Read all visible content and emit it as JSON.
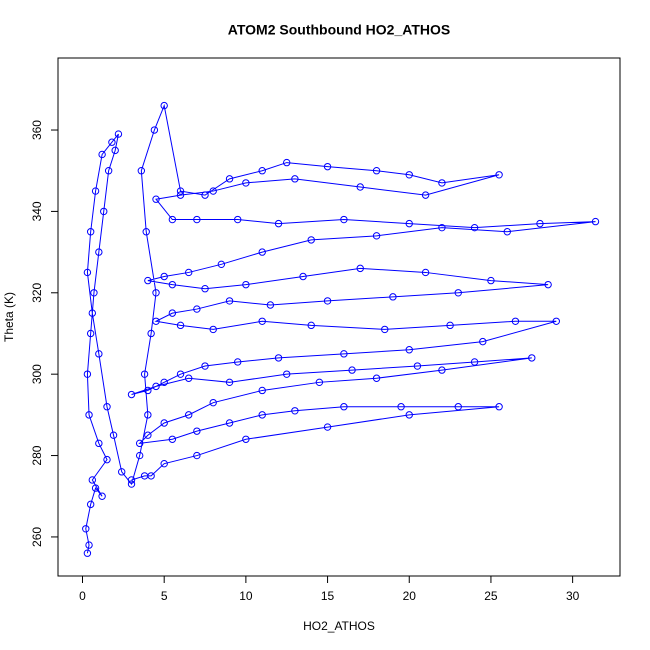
{
  "chart_data": {
    "type": "line",
    "markers": true,
    "title": "ATOM2 Southbound HO2_ATHOS",
    "xlabel": "HO2_ATHOS",
    "ylabel": "Theta (K)",
    "color": "#0000ff",
    "x": [
      0.3,
      0.4,
      0.2,
      0.5,
      0.8,
      1.2,
      0.6,
      1.5,
      1.0,
      0.4,
      0.3,
      0.5,
      0.7,
      1.0,
      1.3,
      1.6,
      2.0,
      2.2,
      1.8,
      1.2,
      0.8,
      0.5,
      0.3,
      0.6,
      1.0,
      1.5,
      1.9,
      2.4,
      3.0,
      3.5,
      4.0,
      3.8,
      4.2,
      4.5,
      3.9,
      3.6,
      4.4,
      5.0,
      6.0,
      7.5,
      9.0,
      11.0,
      12.5,
      15.0,
      18.0,
      20.0,
      22.0,
      25.5,
      21.0,
      17.0,
      13.0,
      10.0,
      8.0,
      6.0,
      4.5,
      5.5,
      7.0,
      9.5,
      12.0,
      16.0,
      20.0,
      24.0,
      28.0,
      31.4,
      26.0,
      22.0,
      18.0,
      14.0,
      11.0,
      8.5,
      6.5,
      5.0,
      4.0,
      5.5,
      7.5,
      10.0,
      13.5,
      17.0,
      21.0,
      25.0,
      28.5,
      23.0,
      19.0,
      15.0,
      11.5,
      9.0,
      7.0,
      5.5,
      4.5,
      6.0,
      8.0,
      11.0,
      14.0,
      18.5,
      22.5,
      26.5,
      29.0,
      24.5,
      20.0,
      16.0,
      12.0,
      9.5,
      7.5,
      6.0,
      5.0,
      4.0,
      3.0,
      4.5,
      6.5,
      9.0,
      12.5,
      16.5,
      20.5,
      24.0,
      27.5,
      22.0,
      18.0,
      14.5,
      11.0,
      8.0,
      6.5,
      5.0,
      4.0,
      3.5,
      5.5,
      7.0,
      9.0,
      11.0,
      13.0,
      16.0,
      19.5,
      23.0,
      25.5,
      20.0,
      15.0,
      10.0,
      7.0,
      5.0,
      4.2,
      3.8,
      3.0
    ],
    "values": [
      256,
      258,
      262,
      268,
      272,
      270,
      274,
      279,
      283,
      290,
      300,
      310,
      320,
      330,
      340,
      350,
      355,
      359,
      357,
      354,
      345,
      335,
      325,
      315,
      305,
      292,
      285,
      276,
      273,
      280,
      290,
      300,
      310,
      320,
      335,
      350,
      360,
      366,
      345,
      344,
      348,
      350,
      352,
      351,
      350,
      349,
      347,
      349,
      344,
      346,
      348,
      347,
      345,
      344,
      343,
      338,
      338,
      338,
      337,
      338,
      337,
      336,
      337,
      337.5,
      335,
      336,
      334,
      333,
      330,
      327,
      325,
      324,
      323,
      322,
      321,
      322,
      324,
      326,
      325,
      323,
      322,
      320,
      319,
      318,
      317,
      318,
      316,
      315,
      313,
      312,
      311,
      313,
      312,
      311,
      312,
      313,
      313,
      308,
      306,
      305,
      304,
      303,
      302,
      300,
      298,
      296,
      295,
      297,
      299,
      298,
      300,
      301,
      302,
      303,
      304,
      301,
      299,
      298,
      296,
      293,
      290,
      288,
      285,
      283,
      284,
      286,
      288,
      290,
      291,
      292,
      292,
      292,
      292,
      290,
      287,
      284,
      280,
      278,
      275,
      275,
      274
    ],
    "xlim": [
      -1.5,
      32.9
    ],
    "ylim": [
      250.4,
      377.7
    ],
    "xticks": [
      0,
      5,
      10,
      15,
      20,
      25,
      30
    ],
    "yticks": [
      260,
      280,
      300,
      320,
      340,
      360
    ]
  }
}
